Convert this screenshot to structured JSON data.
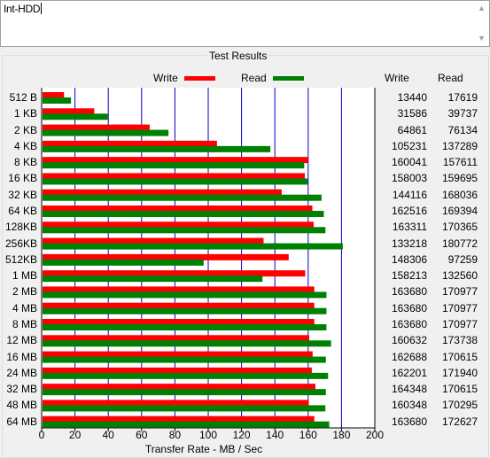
{
  "description": {
    "value": "Int-HDD"
  },
  "group_title": "Test Results",
  "legend": {
    "write_label": "Write",
    "read_label": "Read"
  },
  "table_headers": {
    "write": "Write",
    "read": "Read"
  },
  "colors": {
    "write": "#ff0000",
    "read": "#008000",
    "grid": "#0000c8"
  },
  "chart_data": {
    "type": "bar",
    "orientation": "horizontal",
    "categories": [
      "512 B",
      "1 KB",
      "2 KB",
      "4 KB",
      "8 KB",
      "16 KB",
      "32 KB",
      "64 KB",
      "128KB",
      "256KB",
      "512KB",
      "1 MB",
      "2 MB",
      "4 MB",
      "8 MB",
      "12 MB",
      "16 MB",
      "24 MB",
      "32 MB",
      "48 MB",
      "64 MB"
    ],
    "series": [
      {
        "name": "Write",
        "values": [
          13440,
          31586,
          64861,
          105231,
          160041,
          158003,
          144116,
          162516,
          163311,
          133218,
          148306,
          158213,
          163680,
          163680,
          163680,
          160632,
          162688,
          162201,
          164348,
          160348,
          163680
        ]
      },
      {
        "name": "Read",
        "values": [
          17619,
          39737,
          76134,
          137289,
          157611,
          159695,
          168036,
          169394,
          170365,
          180772,
          97259,
          132560,
          170977,
          170977,
          170977,
          173738,
          170615,
          171940,
          170615,
          170295,
          172627
        ]
      }
    ],
    "xlabel": "Transfer Rate - MB / Sec",
    "xlim": [
      0,
      200
    ],
    "xticks": [
      "0",
      "20",
      "40",
      "60",
      "80",
      "100",
      "120",
      "140",
      "160",
      "180",
      "200"
    ],
    "grid": true,
    "legend_position": "top"
  }
}
